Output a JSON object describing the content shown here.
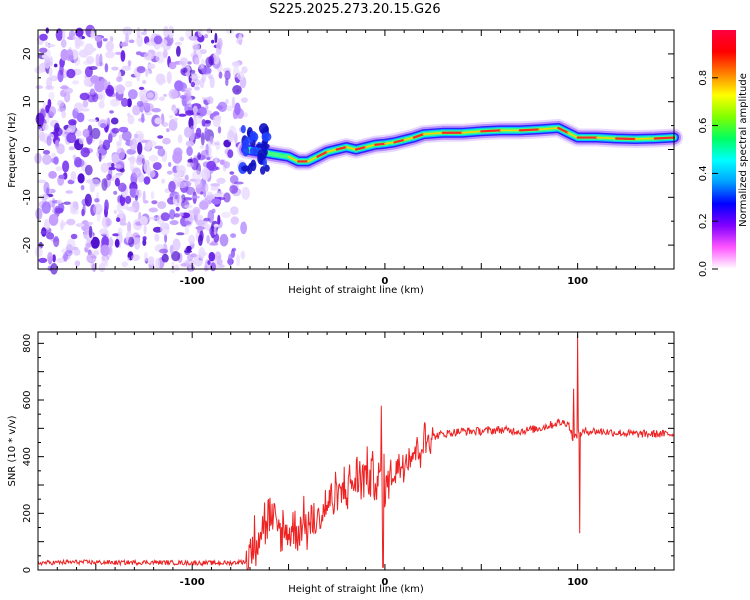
{
  "page_title": "S225.2025.273.20.15.G26",
  "chart_data": [
    {
      "type": "heatmap",
      "title": "S225.2025.273.20.15.G26",
      "xlabel": "Height of straight line (km)",
      "ylabel": "Frequency (Hz)",
      "xlim": [
        -180,
        150
      ],
      "ylim": [
        -25,
        25
      ],
      "x_ticks": [
        -100,
        0,
        100
      ],
      "y_ticks": [
        -20,
        -10,
        0,
        10,
        20
      ],
      "colorbar": {
        "label": "Normalized spectral amplitude",
        "range": [
          0,
          1
        ],
        "ticks": [
          0.0,
          0.2,
          0.4,
          0.6,
          0.8
        ],
        "colormap": [
          "#ffffff",
          "#ff55ff",
          "#8000ff",
          "#0000ff",
          "#00a0ff",
          "#00ffff",
          "#00ff60",
          "#80ff00",
          "#ffff00",
          "#ff8000",
          "#ff0000",
          "#ff0040"
        ]
      },
      "noise_region": {
        "x_from": -180,
        "x_to": -72,
        "freq_from": -25,
        "freq_to": 25
      },
      "ridge": {
        "x": [
          -72,
          -65,
          -58,
          -50,
          -45,
          -40,
          -35,
          -30,
          -25,
          -20,
          -15,
          -10,
          -5,
          0,
          5,
          10,
          15,
          20,
          30,
          40,
          50,
          60,
          70,
          80,
          90,
          95,
          100,
          110,
          120,
          130,
          140,
          150
        ],
        "freq": [
          0,
          -0.5,
          -1,
          -1.5,
          -2.5,
          -2.5,
          -1.5,
          -0.5,
          0,
          0.5,
          0,
          0.5,
          1,
          1.2,
          1.5,
          2,
          2.5,
          3.2,
          3.5,
          3.5,
          3.8,
          4,
          4,
          4.2,
          4.5,
          3.5,
          2.5,
          2.5,
          2.3,
          2.2,
          2.3,
          2.5
        ]
      }
    },
    {
      "type": "line",
      "xlabel": "Height of straight line (km)",
      "ylabel": "SNR (10 * v/v)",
      "xlim": [
        -180,
        150
      ],
      "ylim": [
        0,
        840
      ],
      "x_ticks": [
        -100,
        0,
        100
      ],
      "y_ticks": [
        0,
        200,
        400,
        600,
        800
      ],
      "series": [
        {
          "color": "#ee2222",
          "x": [
            -180,
            -160,
            -140,
            -120,
            -100,
            -80,
            -72,
            -70,
            -65,
            -60,
            -55,
            -50,
            -45,
            -40,
            -35,
            -30,
            -25,
            -20,
            -15,
            -10,
            -5,
            0,
            5,
            10,
            15,
            20,
            25,
            30,
            40,
            50,
            60,
            70,
            80,
            90,
            95,
            98,
            100,
            105,
            110,
            120,
            130,
            140,
            150
          ],
          "values": [
            25,
            28,
            26,
            27,
            25,
            25,
            30,
            60,
            150,
            180,
            140,
            130,
            150,
            160,
            170,
            230,
            260,
            290,
            320,
            340,
            330,
            300,
            350,
            390,
            420,
            450,
            470,
            480,
            490,
            490,
            495,
            490,
            500,
            520,
            520,
            460,
            480,
            490,
            490,
            485,
            480,
            480,
            480
          ]
        }
      ],
      "spikes": [
        {
          "x": -2,
          "value": 580
        },
        {
          "x": -1,
          "value": 10
        },
        {
          "x": 98,
          "value": 640
        },
        {
          "x": 100,
          "value": 830
        },
        {
          "x": 101,
          "value": 130
        }
      ]
    }
  ]
}
